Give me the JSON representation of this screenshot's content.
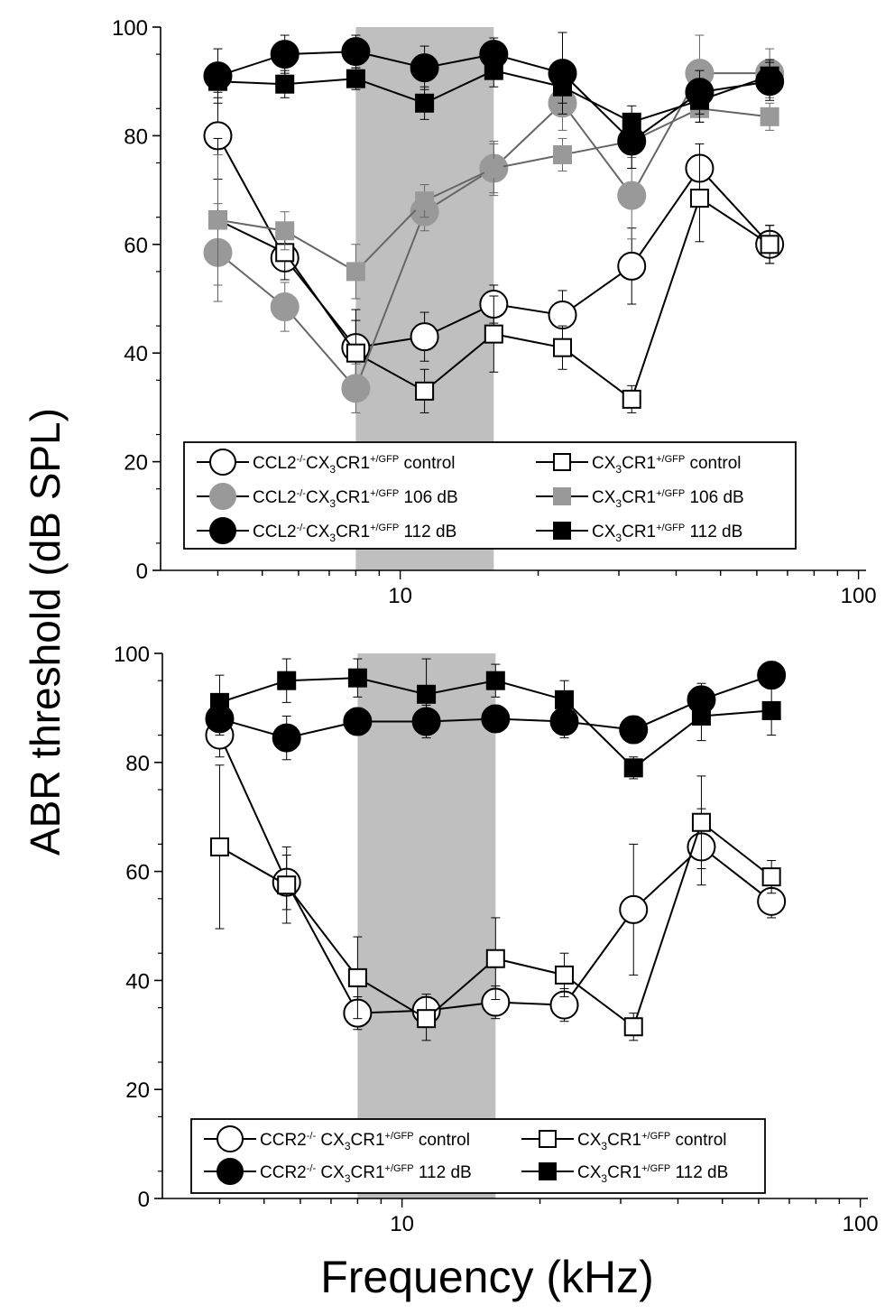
{
  "figure": {
    "ylabel": "ABR threshold (dB SPL)",
    "xlabel": "Frequency (kHz)",
    "colors": {
      "white": "#ffffff",
      "gray": "#999999",
      "black": "#000000",
      "shade": "#bfbfbf"
    }
  },
  "chart_data": [
    {
      "type": "line",
      "title": "",
      "xlabel": "Frequency (kHz)",
      "ylabel": "ABR threshold (dB SPL)",
      "xscale": "log",
      "xlim": [
        3,
        100
      ],
      "ylim": [
        0,
        100
      ],
      "xticks": [
        {
          "value": 10,
          "label": "10"
        },
        {
          "value": 100,
          "label": "100"
        }
      ],
      "yticks": [
        0,
        20,
        40,
        60,
        80,
        100
      ],
      "shaded_band": [
        8,
        16
      ],
      "grid": false,
      "legend_position": "bottom-left",
      "x": [
        4,
        5.6,
        8,
        11.3,
        16,
        22.6,
        32,
        45,
        64
      ],
      "series": [
        {
          "name": "CCL2-/-CX3CR1+/GFP control",
          "legend": {
            "pre": "CCL2",
            "sup1": "-/-",
            "mid": "CX",
            "sub": "3",
            "post": "CR1",
            "sup2": "+/GFP",
            "end": " control"
          },
          "marker": "circle",
          "fill": "#ffffff",
          "values": [
            80,
            57.5,
            41,
            43,
            49,
            47,
            56,
            74,
            60
          ],
          "errors": [
            8,
            4,
            7,
            4.5,
            3.5,
            4.5,
            7,
            4.5,
            3.5
          ]
        },
        {
          "name": "CX3CR1+/GFP control",
          "legend": {
            "pre": "CX",
            "sub": "3",
            "post": "CR1",
            "sup2": "+/GFP",
            "end": " control"
          },
          "marker": "square",
          "fill": "#ffffff",
          "values": [
            64.5,
            58.5,
            40,
            33,
            43.5,
            41,
            31.5,
            68.5,
            60
          ],
          "errors": [
            15,
            3.5,
            6,
            4,
            7,
            4,
            2.5,
            8,
            3.5
          ]
        },
        {
          "name": "CCL2-/-CX3CR1+/GFP 106 dB",
          "legend": {
            "pre": "CCL2",
            "sup1": "-/-",
            "mid": "CX",
            "sub": "3",
            "post": "CR1",
            "sup2": "+/GFP",
            "end": " 106 dB"
          },
          "marker": "circle",
          "fill": "#999999",
          "values": [
            58.5,
            48.5,
            33.5,
            66,
            74,
            86,
            69,
            91.5,
            91.5
          ],
          "errors": [
            9,
            4.5,
            4.5,
            3.5,
            4.5,
            5,
            8,
            7,
            4.5
          ]
        },
        {
          "name": "CX3CR1+/GFP 106 dB",
          "legend": {
            "pre": "CX",
            "sub": "3",
            "post": "CR1",
            "sup2": "+/GFP",
            "end": " 106 dB"
          },
          "marker": "square",
          "fill": "#999999",
          "values": [
            64.5,
            62.5,
            55,
            68,
            74,
            76.5,
            79,
            85,
            83.5
          ],
          "errors": [
            12,
            3.5,
            5,
            3,
            5,
            3,
            3,
            2.5,
            2.5
          ]
        },
        {
          "name": "CCL2-/-CX3CR1+/GFP 112 dB",
          "legend": {
            "pre": "CCL2",
            "sup1": "-/-",
            "mid": "CX",
            "sub": "3",
            "post": "CR1",
            "sup2": "+/GFP",
            "end": " 112 dB"
          },
          "marker": "circle",
          "fill": "#000000",
          "values": [
            91,
            95,
            95.5,
            92.5,
            95,
            91.5,
            79,
            88,
            90
          ],
          "errors": [
            5,
            3.5,
            3,
            4,
            3,
            7.5,
            5,
            4,
            3.5
          ]
        },
        {
          "name": "CX3CR1+/GFP 112 dB",
          "legend": {
            "pre": "CX",
            "sub": "3",
            "post": "CR1",
            "sup2": "+/GFP",
            "end": " 112 dB"
          },
          "marker": "square",
          "fill": "#000000",
          "values": [
            90,
            89.5,
            90.5,
            86,
            92,
            89,
            82.5,
            86.5,
            91
          ],
          "errors": [
            3,
            2.5,
            2,
            3,
            3,
            3,
            3,
            4,
            3
          ]
        }
      ]
    },
    {
      "type": "line",
      "title": "",
      "xlabel": "Frequency (kHz)",
      "ylabel": "ABR threshold (dB SPL)",
      "xscale": "log",
      "xlim": [
        3,
        100
      ],
      "ylim": [
        0,
        100
      ],
      "xticks": [
        {
          "value": 10,
          "label": "10"
        },
        {
          "value": 100,
          "label": "100"
        }
      ],
      "yticks": [
        0,
        20,
        40,
        60,
        80,
        100
      ],
      "shaded_band": [
        8,
        16
      ],
      "grid": false,
      "legend_position": "bottom-left",
      "x": [
        4,
        5.6,
        8,
        11.3,
        16,
        22.6,
        32,
        45,
        64
      ],
      "series": [
        {
          "name": "CCR2-/-CX3CR1+/GFP control",
          "legend": {
            "pre": "CCR2",
            "sup1": "-/-",
            "mid": " CX",
            "sub": "3",
            "post": "CR1",
            "sup2": "+/GFP",
            "end": " control"
          },
          "marker": "circle",
          "fill": "#ffffff",
          "values": [
            85,
            58,
            34,
            34.5,
            36,
            35.5,
            53,
            64.5,
            54.5
          ],
          "errors": [
            4,
            5,
            3,
            3,
            3,
            3,
            12,
            7,
            3
          ]
        },
        {
          "name": "CX3CR1+/GFP control",
          "legend": {
            "pre": "CX",
            "sub": "3",
            "post": "CR1",
            "sup2": "+/GFP",
            "end": " control"
          },
          "marker": "square",
          "fill": "#ffffff",
          "values": [
            64.5,
            57.5,
            40.5,
            33,
            44,
            41,
            31.5,
            69,
            59
          ],
          "errors": [
            15,
            7,
            7.5,
            4,
            7.5,
            4,
            2.5,
            8.5,
            3
          ]
        },
        {
          "name": "CCR2-/-CX3CR1+/GFP 112 dB",
          "legend": {
            "pre": "CCR2",
            "sup1": "-/-",
            "mid": " CX",
            "sub": "3",
            "post": "CR1",
            "sup2": "+/GFP",
            "end": " 112 dB"
          },
          "marker": "circle",
          "fill": "#000000",
          "values": [
            88,
            84.5,
            87.5,
            87.5,
            88,
            87.5,
            86,
            91.5,
            96
          ],
          "errors": [
            3,
            4,
            2.5,
            3,
            2.5,
            3,
            2.5,
            3,
            2.5
          ]
        },
        {
          "name": "CX3CR1+/GFP 112 dB",
          "legend": {
            "pre": "CX",
            "sub": "3",
            "post": "CR1",
            "sup2": "+/GFP",
            "end": " 112 dB"
          },
          "marker": "square",
          "fill": "#000000",
          "values": [
            91,
            95,
            95.5,
            92.5,
            95,
            91.5,
            79,
            88.5,
            89.5
          ],
          "errors": [
            5,
            4,
            3.5,
            6.5,
            3,
            3.5,
            2,
            4.5,
            4.5
          ]
        }
      ]
    }
  ]
}
